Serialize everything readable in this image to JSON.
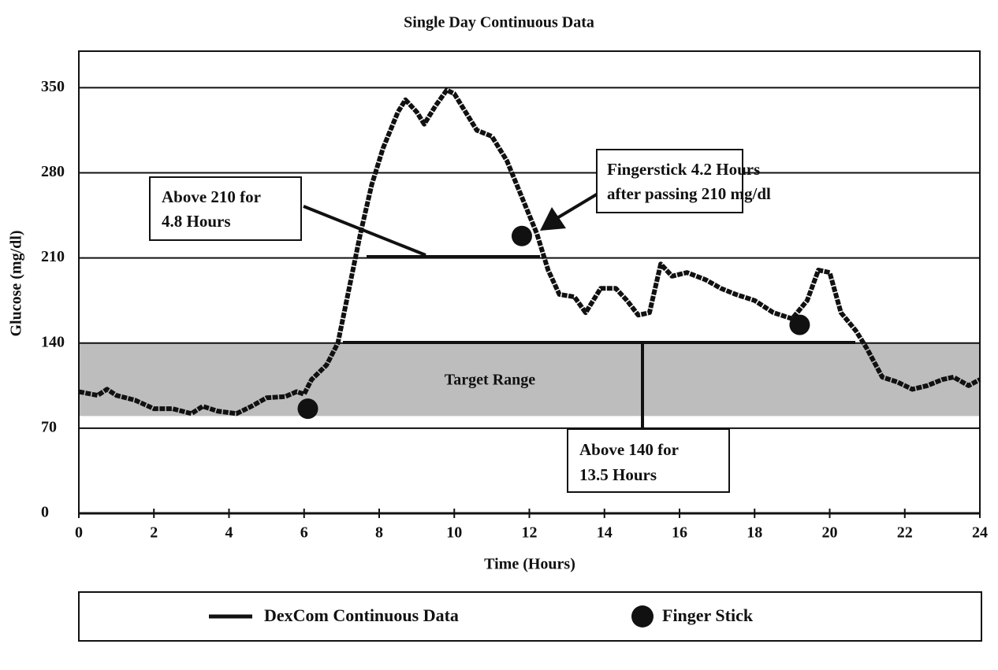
{
  "chart_data": {
    "type": "line",
    "title": "Single Day Continuous Data",
    "xlabel": "Time (Hours)",
    "ylabel": "Glucose (mg/dl)",
    "xlim": [
      0,
      24
    ],
    "xticks": [
      0,
      2,
      4,
      6,
      8,
      10,
      12,
      14,
      16,
      18,
      20,
      22,
      24
    ],
    "ylim": [
      0,
      380
    ],
    "yticks": [
      0,
      70,
      140,
      210,
      280,
      350
    ],
    "grid": true,
    "target_range": [
      80,
      140
    ],
    "target_label": "Target Range",
    "series": [
      {
        "name": "DexCom Continuous Data",
        "color": "#111111",
        "style": "line",
        "x": [
          0,
          0.5,
          0.75,
          1,
          1.5,
          2,
          2.5,
          3,
          3.3,
          3.7,
          4.2,
          4.6,
          5,
          5.5,
          5.8,
          6,
          6.2,
          6.6,
          6.9,
          7.1,
          7.3,
          7.5,
          7.8,
          8.1,
          8.5,
          8.7,
          9,
          9.2,
          9.5,
          9.8,
          10,
          10.3,
          10.6,
          11,
          11.4,
          11.8,
          12.2,
          12.5,
          12.8,
          13.2,
          13.5,
          13.9,
          14.3,
          14.6,
          14.9,
          15.2,
          15.5,
          15.8,
          16.2,
          16.7,
          17.1,
          17.5,
          18,
          18.5,
          19,
          19.4,
          19.7,
          20,
          20.3,
          20.7,
          21,
          21.4,
          21.8,
          22.2,
          22.6,
          23,
          23.3,
          23.7,
          24
        ],
        "values": [
          100,
          97,
          102,
          97,
          93,
          86,
          86,
          82,
          88,
          84,
          82,
          88,
          95,
          96,
          100,
          98,
          110,
          122,
          140,
          170,
          200,
          230,
          270,
          300,
          330,
          340,
          330,
          320,
          335,
          348,
          345,
          330,
          315,
          310,
          290,
          260,
          230,
          200,
          180,
          178,
          165,
          185,
          185,
          175,
          163,
          165,
          205,
          195,
          198,
          192,
          185,
          180,
          175,
          165,
          160,
          175,
          200,
          198,
          165,
          150,
          135,
          112,
          108,
          102,
          105,
          110,
          112,
          105,
          110
        ]
      },
      {
        "name": "Finger Stick",
        "color": "#111111",
        "style": "marker",
        "x": [
          6.1,
          11.8,
          19.2
        ],
        "values": [
          86,
          228,
          155
        ]
      }
    ],
    "annotations": [
      {
        "lines": [
          "Above 210 for",
          "4.8 Hours"
        ]
      },
      {
        "lines": [
          "Fingerstick 4.2 Hours",
          "after passing 210 mg/dl"
        ]
      },
      {
        "lines": [
          "Above 140 for",
          "13.5 Hours"
        ]
      }
    ]
  }
}
